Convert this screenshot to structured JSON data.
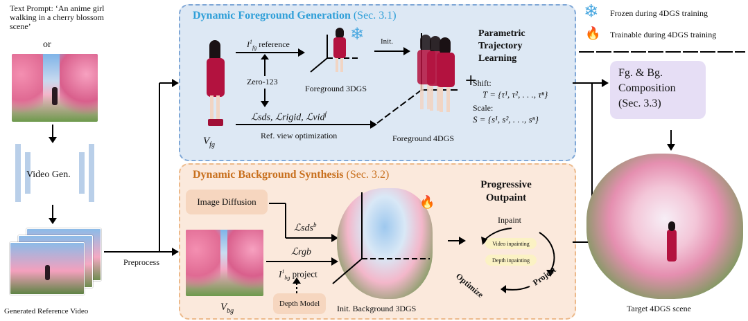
{
  "legend": {
    "frozen_icon": "snowflake-icon",
    "frozen_label": "Frozen during 4DGS training",
    "trainable_icon": "flame-icon",
    "trainable_label": "Trainable during 4DGS training"
  },
  "left": {
    "text_prompt": "Text Prompt: ‘An anime girl walking in a cherry blossom scene’",
    "or": "or",
    "video_gen": "Video Gen.",
    "generated_reference_video": "Generated Reference Video",
    "preprocess": "Preprocess"
  },
  "foreground": {
    "title": "Dynamic Foreground Generation",
    "title_sec": "(Sec. 3.1)",
    "v_fg": "V",
    "v_fg_sub": "fg",
    "reference_label": "reference",
    "reference_sym": "I",
    "reference_sup": "1",
    "reference_sub": "fg",
    "zero123": "Zero-123",
    "losses": "ℒsds, ℒrigid, ℒvid",
    "loss_sup": "f",
    "ref_view_opt": "Ref. view optimization",
    "foreground_3dgs": "Foreground 3DGS",
    "init": "Init.",
    "foreground_4dgs": "Foreground 4DGS",
    "param_title": "Parametric Trajectory Learning",
    "shift_label": "Shift:",
    "shift_eq": "T = {τ¹, τ², . . ., τⁿ}",
    "scale_label": "Scale:",
    "scale_eq": "S = {s¹, s², . . ., sⁿ}",
    "plus": "+"
  },
  "background": {
    "title": "Dynamic Background Synthesis",
    "title_sec": "(Sec. 3.2)",
    "image_diffusion": "Image Diffusion",
    "loss_sds_b": "ℒsds",
    "loss_sds_b_sup": "b",
    "loss_rgb": "ℒrgb",
    "project_label": "project",
    "project_sym": "I",
    "project_sup": "1",
    "project_sub": "bg",
    "depth_model": "Depth Model",
    "v_bg": "V",
    "v_bg_sub": "bg",
    "init_bg_3dgs": "Init. Background 3DGS",
    "progressive_outpaint": "Progressive Outpaint",
    "inpaint": "Inpaint",
    "video_inpainting": "Video inpainting",
    "depth_inpainting": "Depth inpainting",
    "project": "Project",
    "optimize": "Optimize"
  },
  "composition": {
    "label": "Fg. & Bg. Composition (Sec. 3.3)",
    "line1": "Fg. & Bg.",
    "line2": "Composition",
    "line3": "(Sec. 3.3)",
    "target": "Target 4DGS scene"
  },
  "colors": {
    "fg_panel": "#dde8f4",
    "fg_border": "#7fa7d6",
    "fg_title": "#2f9fd8",
    "bg_panel": "#fbe9dc",
    "bg_border": "#ecb98a",
    "bg_title": "#c8701e",
    "composition_box": "#e6def5",
    "image_diffusion_box": "#f6d6bf",
    "depth_model_box": "#f6d6bf",
    "inpaint_box": "#fbf2c4"
  }
}
